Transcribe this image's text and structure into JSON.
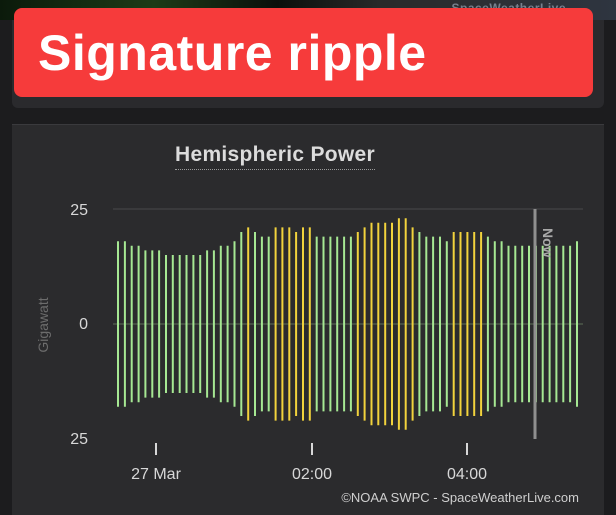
{
  "banner": {
    "text": "Signature ripple"
  },
  "watermark": {
    "text": "SpaceWeatherLive"
  },
  "chart_data": {
    "type": "bar",
    "title": "Hemispheric Power",
    "ylabel": "Gigawatt",
    "ylim": [
      -25,
      25
    ],
    "y_tick_labels": [
      "25",
      "0",
      "25"
    ],
    "x_tick_labels": [
      "27 Mar",
      "02:00",
      "04:00"
    ],
    "now_label": "Now",
    "credit": "©NOAA SWPC - SpaceWeatherLive.com",
    "colors": {
      "green": "#a6e893",
      "yellow": "#f2d33c",
      "now_line": "#8f8f8f"
    },
    "series": [
      {
        "values": [
          18,
          18,
          17,
          17,
          16,
          16,
          16,
          15,
          15,
          15,
          15,
          15,
          15,
          16,
          16,
          17,
          17,
          18,
          20,
          21,
          20,
          19,
          19,
          21,
          21,
          21,
          20,
          21,
          21,
          19,
          19,
          19,
          19,
          19,
          19,
          20,
          21,
          22,
          22,
          22,
          22,
          23,
          23,
          21,
          20,
          19,
          19,
          19,
          18,
          20,
          20,
          20,
          20,
          20,
          19,
          18,
          18,
          17,
          17,
          17,
          17,
          17,
          17,
          17,
          17,
          17,
          17,
          18
        ]
      }
    ],
    "bar_colors": [
      "green",
      "green",
      "green",
      "green",
      "green",
      "green",
      "green",
      "green",
      "green",
      "green",
      "green",
      "green",
      "green",
      "green",
      "green",
      "green",
      "green",
      "green",
      "green",
      "yellow",
      "green",
      "green",
      "green",
      "yellow",
      "yellow",
      "yellow",
      "yellow",
      "yellow",
      "yellow",
      "green",
      "green",
      "green",
      "green",
      "green",
      "green",
      "yellow",
      "yellow",
      "yellow",
      "yellow",
      "yellow",
      "yellow",
      "yellow",
      "yellow",
      "yellow",
      "green",
      "green",
      "green",
      "green",
      "green",
      "yellow",
      "yellow",
      "yellow",
      "yellow",
      "yellow",
      "green",
      "green",
      "green",
      "green",
      "green",
      "green",
      "green",
      "green",
      "green",
      "green",
      "green",
      "green",
      "green",
      "green"
    ]
  }
}
